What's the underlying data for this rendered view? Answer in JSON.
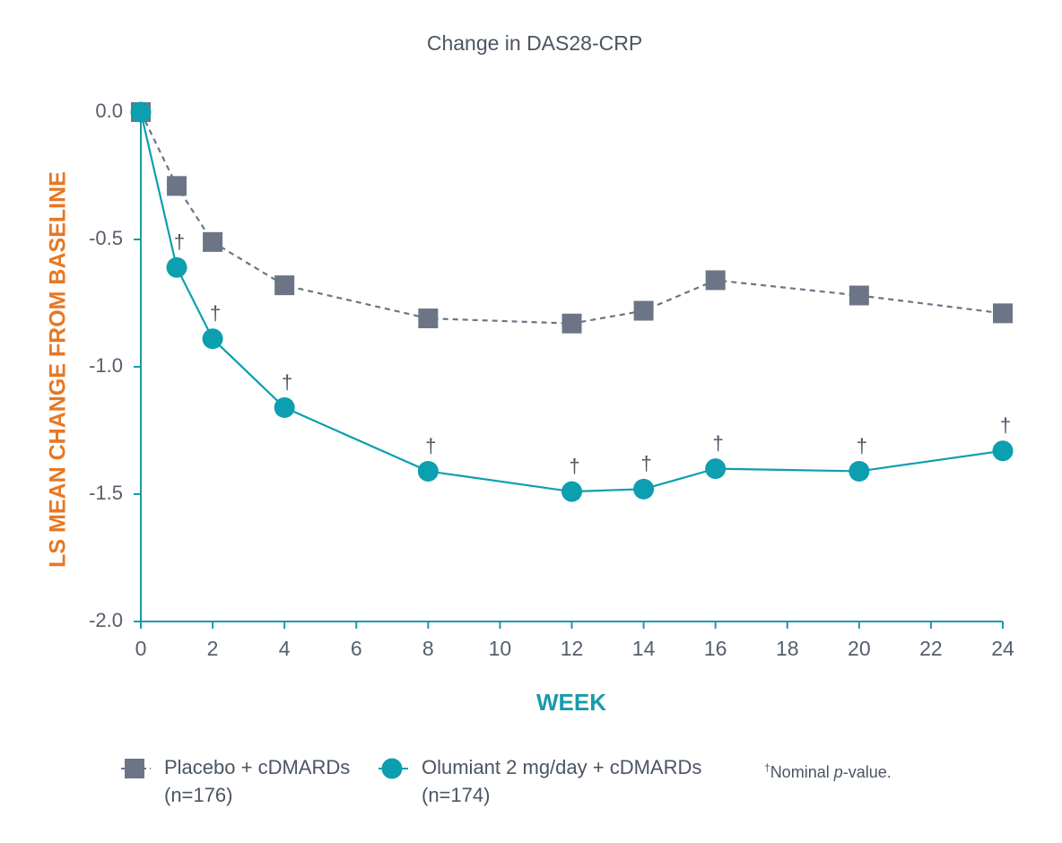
{
  "chart_data": {
    "type": "line",
    "title": "Change in DAS28-CRP",
    "xlabel": "WEEK",
    "ylabel": "LS MEAN CHANGE FROM BASELINE",
    "x": [
      0,
      1,
      2,
      4,
      8,
      12,
      14,
      16,
      20,
      24
    ],
    "series": [
      {
        "name": "Placebo + cDMARDs",
        "n_label": "(n=176)",
        "color": "#6b7585",
        "dashed": true,
        "marker": "square",
        "values": [
          0,
          -0.29,
          -0.51,
          -0.68,
          -0.81,
          -0.83,
          -0.78,
          -0.66,
          -0.72,
          -0.79
        ]
      },
      {
        "name": "Olumiant 2 mg/day + cDMARDs",
        "n_label": "(n=174)",
        "color": "#0b9fb0",
        "dashed": false,
        "marker": "circle",
        "values": [
          0,
          -0.61,
          -0.89,
          -1.16,
          -1.41,
          -1.49,
          -1.48,
          -1.4,
          -1.41,
          -1.33
        ],
        "annotations": [
          null,
          "†",
          "†",
          "†",
          "†",
          "†",
          "†",
          "†",
          "†",
          "†"
        ]
      }
    ],
    "xlim": [
      0,
      24
    ],
    "xticks": [
      0,
      2,
      4,
      6,
      8,
      10,
      12,
      14,
      16,
      18,
      20,
      22,
      24
    ],
    "ylim": [
      -2,
      0
    ],
    "yticks": [
      {
        "value": 0,
        "label": "0.0"
      },
      {
        "value": -0.5,
        "label": "-0.5"
      },
      {
        "value": -1,
        "label": "-1.0"
      },
      {
        "value": -1.5,
        "label": "-1.5"
      },
      {
        "value": -2,
        "label": "-2.0"
      }
    ],
    "axis_color": "#1a9aaa",
    "footnote": [
      "†",
      "Nominal ",
      "p",
      "-value."
    ]
  }
}
